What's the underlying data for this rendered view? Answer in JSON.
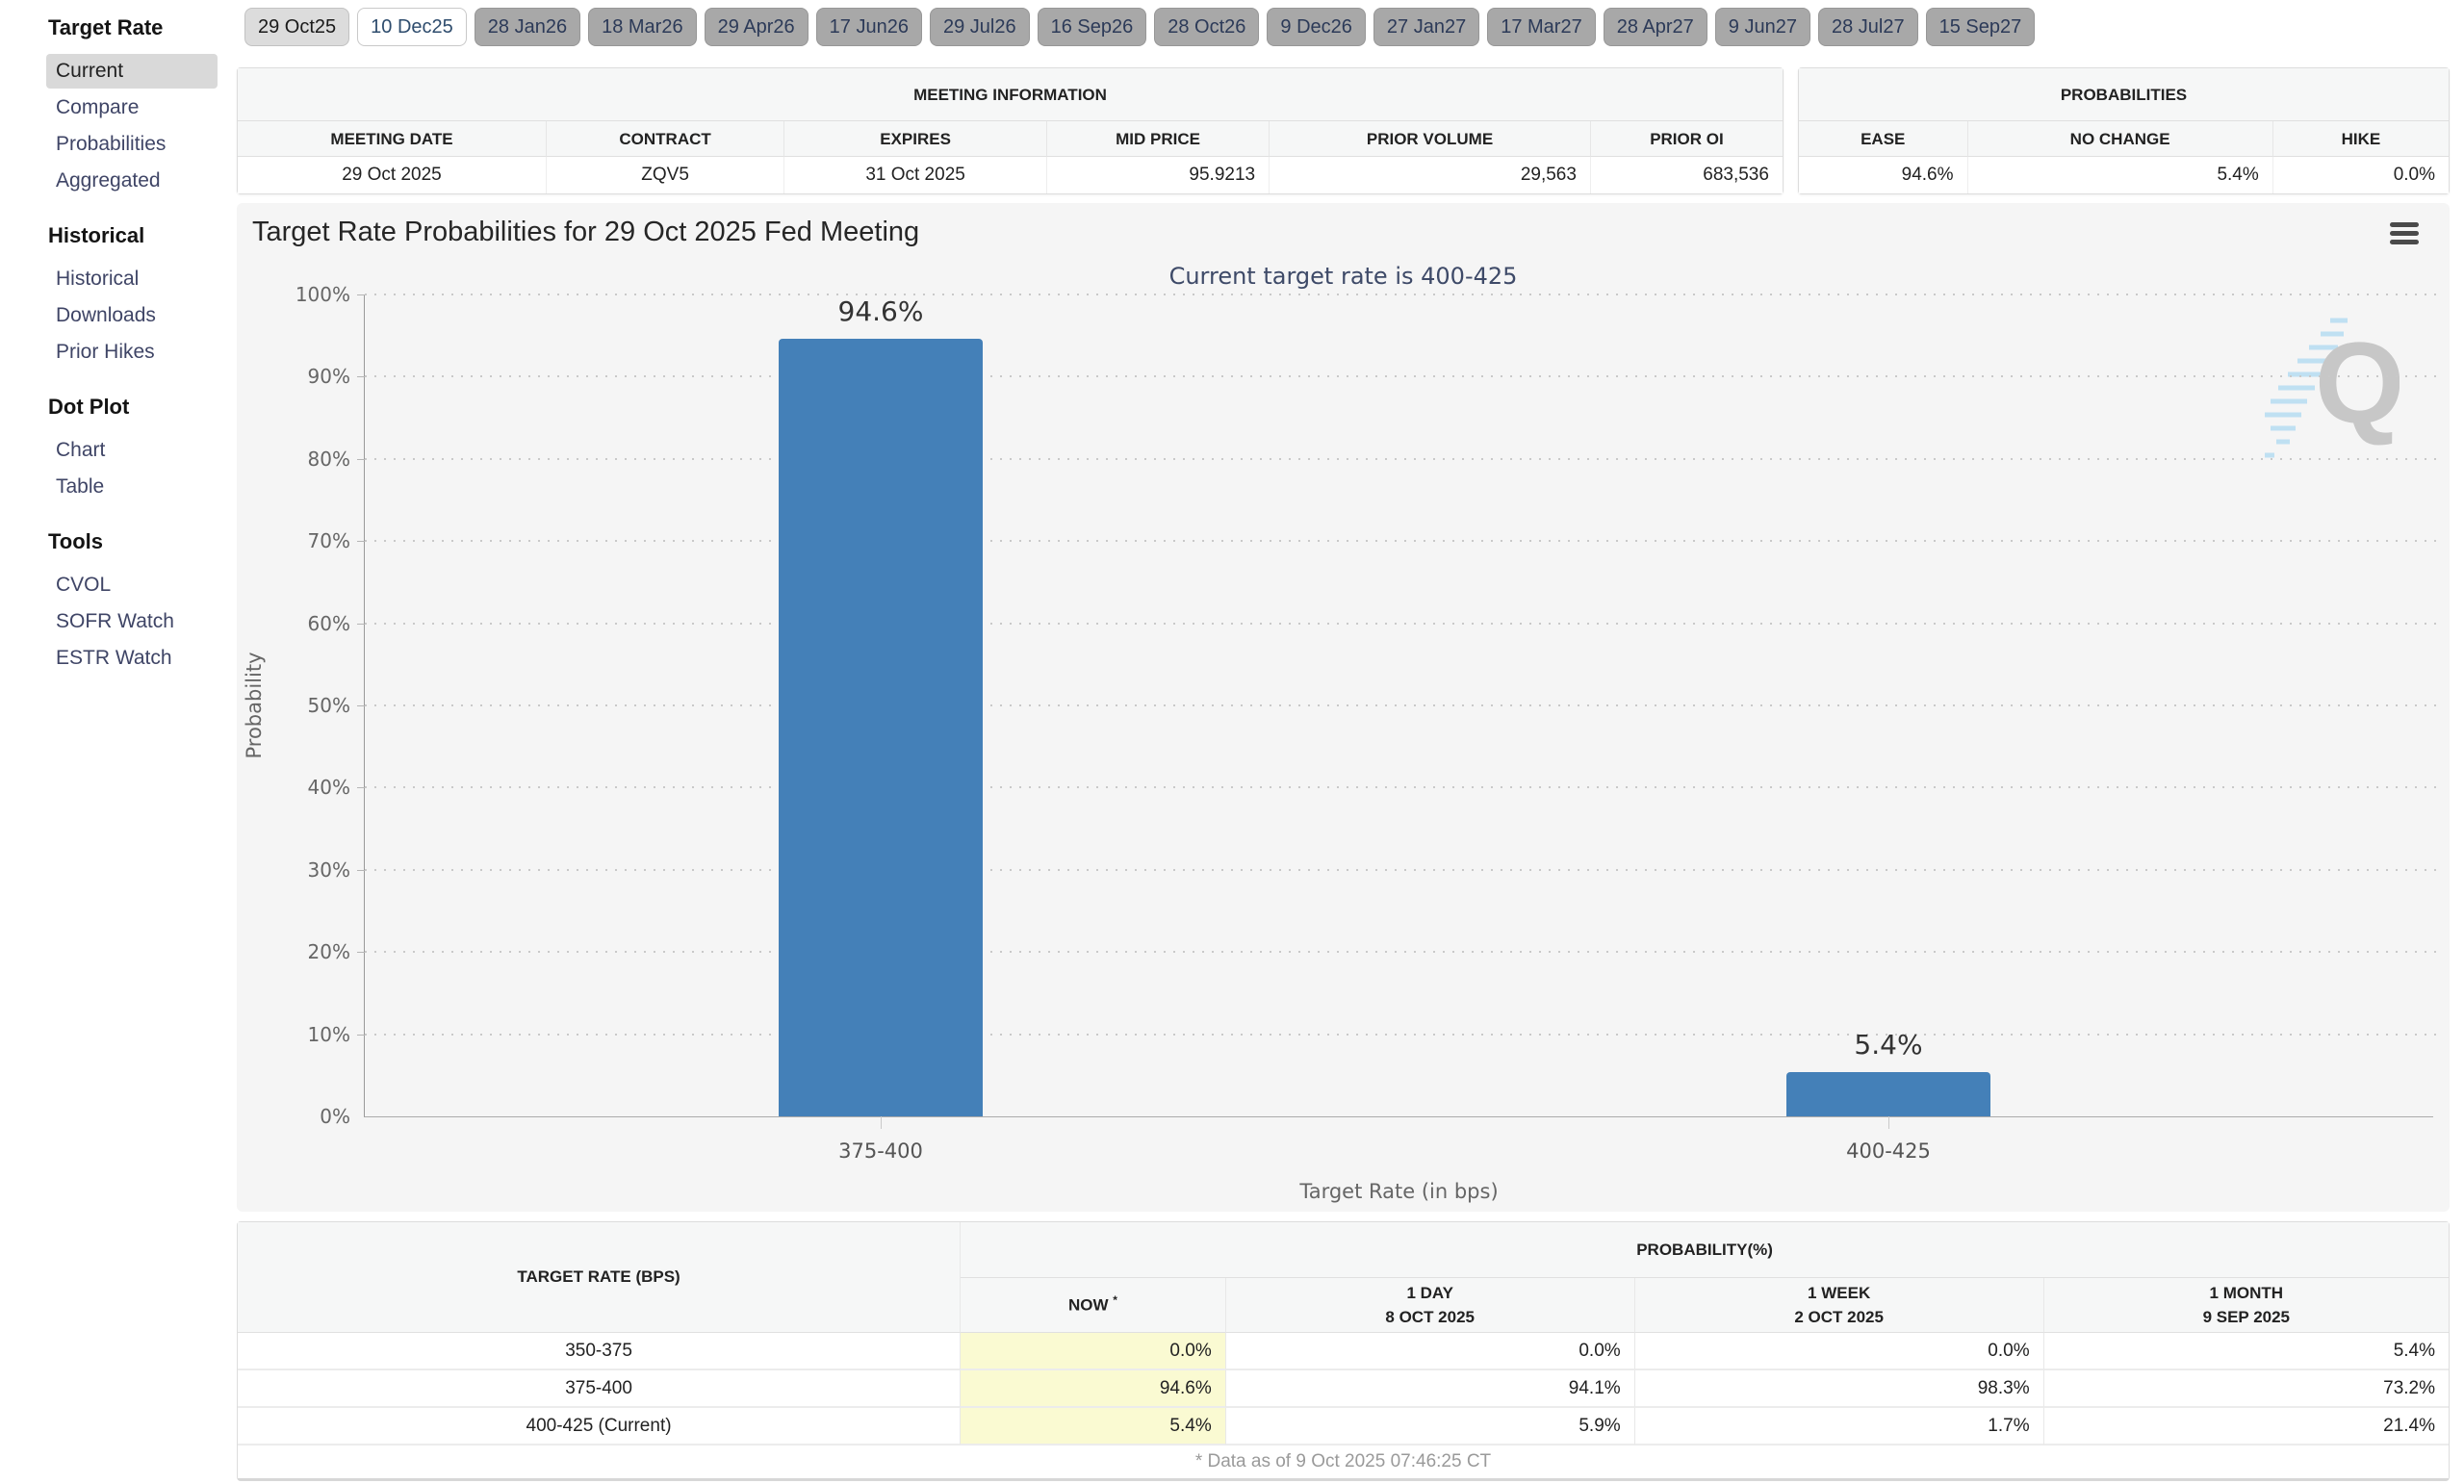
{
  "sidebar": {
    "sections": [
      {
        "title": "Target Rate",
        "items": [
          {
            "label": "Current",
            "selected": true
          },
          {
            "label": "Compare"
          },
          {
            "label": "Probabilities"
          },
          {
            "label": "Aggregated"
          }
        ]
      },
      {
        "title": "Historical",
        "items": [
          {
            "label": "Historical"
          },
          {
            "label": "Downloads"
          },
          {
            "label": "Prior Hikes"
          }
        ]
      },
      {
        "title": "Dot Plot",
        "items": [
          {
            "label": "Chart"
          },
          {
            "label": "Table"
          }
        ]
      },
      {
        "title": "Tools",
        "items": [
          {
            "label": "CVOL"
          },
          {
            "label": "SOFR Watch"
          },
          {
            "label": "ESTR Watch"
          }
        ]
      }
    ]
  },
  "tabs": [
    {
      "label": "29 Oct25"
    },
    {
      "label": "10 Dec25",
      "selected": true
    },
    {
      "label": "28 Jan26"
    },
    {
      "label": "18 Mar26"
    },
    {
      "label": "29 Apr26"
    },
    {
      "label": "17 Jun26"
    },
    {
      "label": "29 Jul26"
    },
    {
      "label": "16 Sep26"
    },
    {
      "label": "28 Oct26"
    },
    {
      "label": "9 Dec26"
    },
    {
      "label": "27 Jan27"
    },
    {
      "label": "17 Mar27"
    },
    {
      "label": "28 Apr27"
    },
    {
      "label": "9 Jun27"
    },
    {
      "label": "28 Jul27"
    },
    {
      "label": "15 Sep27"
    }
  ],
  "meeting_information": {
    "title": "MEETING INFORMATION",
    "columns": [
      "MEETING DATE",
      "CONTRACT",
      "EXPIRES",
      "MID PRICE",
      "PRIOR VOLUME",
      "PRIOR OI"
    ],
    "values": [
      "29 Oct 2025",
      "ZQV5",
      "31 Oct 2025",
      "95.9213",
      "29,563",
      "683,536"
    ]
  },
  "probabilities_panel": {
    "title": "PROBABILITIES",
    "columns": [
      "EASE",
      "NO CHANGE",
      "HIKE"
    ],
    "values": [
      "94.6%",
      "5.4%",
      "0.0%"
    ]
  },
  "chart_data": {
    "type": "bar",
    "title": "Target Rate Probabilities for 29 Oct 2025 Fed Meeting",
    "subtitle": "Current target rate is 400-425",
    "categories": [
      "375-400",
      "400-425"
    ],
    "values": [
      94.6,
      5.4
    ],
    "bar_labels": [
      "94.6%",
      "5.4%"
    ],
    "xlabel": "Target Rate (in bps)",
    "ylabel": "Probability",
    "ylim": [
      0,
      100
    ],
    "ytick_step": 10,
    "yticks": [
      "100%",
      "90%",
      "80%",
      "70%",
      "60%",
      "50%",
      "40%",
      "30%",
      "20%",
      "10%",
      "0%"
    ],
    "grid": "horizontal-dotted",
    "legend": "none",
    "bar_color": "#4480b8",
    "watermark": "Q"
  },
  "bottom_table": {
    "corner_header": "TARGET RATE (BPS)",
    "group_header": "PROBABILITY(%)",
    "sub_headers": [
      {
        "line1": "NOW",
        "sup": "*",
        "line2": ""
      },
      {
        "line1": "1 DAY",
        "line2": "8 OCT 2025"
      },
      {
        "line1": "1 WEEK",
        "line2": "2 OCT 2025"
      },
      {
        "line1": "1 MONTH",
        "line2": "9 SEP 2025"
      }
    ],
    "rows": [
      {
        "label": "350-375",
        "now": "0.0%",
        "day1": "0.0%",
        "week1": "0.0%",
        "month1": "5.4%"
      },
      {
        "label": "375-400",
        "now": "94.6%",
        "day1": "94.1%",
        "week1": "98.3%",
        "month1": "73.2%"
      },
      {
        "label": "400-425 (Current)",
        "now": "5.4%",
        "day1": "5.9%",
        "week1": "1.7%",
        "month1": "21.4%"
      }
    ],
    "footnote": "* Data as of 9 Oct 2025 07:46:25 CT"
  },
  "colors": {
    "bar": "#4480b8",
    "now_column": "#fafad2",
    "subtitle": "#3e4a68",
    "chart_bg": "#f5f5f5"
  }
}
